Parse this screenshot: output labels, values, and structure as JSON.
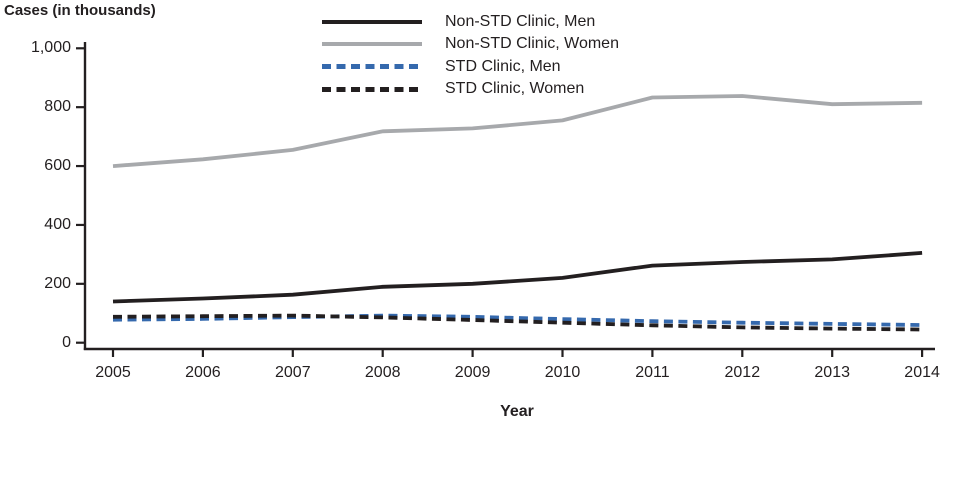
{
  "title": "Cases (in thousands)",
  "xlabel": "Year",
  "accent_colors": {
    "line_black": "#231f20",
    "line_gray": "#a7a9ac",
    "line_blue": "#3569ad",
    "axis": "#231f20"
  },
  "legend": {
    "items": [
      {
        "label": "Non-STD Clinic, Men",
        "color": "#231f20",
        "dash": false
      },
      {
        "label": "Non-STD Clinic, Women",
        "color": "#a7a9ac",
        "dash": false
      },
      {
        "label": "STD Clinic, Men",
        "color": "#3569ad",
        "dash": true
      },
      {
        "label": "STD Clinic, Women",
        "color": "#231f20",
        "dash": true
      }
    ]
  },
  "chart_data": {
    "type": "line",
    "title": "Cases (in thousands)",
    "xlabel": "Year",
    "ylabel": "Cases (in thousands)",
    "x": [
      2005,
      2006,
      2007,
      2008,
      2009,
      2010,
      2011,
      2012,
      2013,
      2014
    ],
    "series": [
      {
        "name": "Non-STD Clinic, Women",
        "color": "#a7a9ac",
        "dashed": false,
        "values": [
          600,
          623,
          655,
          718,
          728,
          755,
          833,
          838,
          810,
          815
        ]
      },
      {
        "name": "Non-STD Clinic, Men",
        "color": "#231f20",
        "dashed": false,
        "values": [
          140,
          150,
          163,
          190,
          200,
          220,
          262,
          274,
          283,
          305
        ]
      },
      {
        "name": "STD Clinic, Men",
        "color": "#3569ad",
        "dashed": true,
        "values": [
          78,
          81,
          87,
          92,
          88,
          80,
          73,
          68,
          64,
          60
        ]
      },
      {
        "name": "STD Clinic, Women",
        "color": "#231f20",
        "dashed": true,
        "values": [
          88,
          90,
          92,
          86,
          77,
          68,
          59,
          52,
          48,
          45
        ]
      }
    ],
    "ylim": [
      0,
      1000
    ],
    "yticks": [
      0,
      200,
      400,
      600,
      800,
      1000
    ],
    "ytick_labels": [
      "0",
      "200",
      "400",
      "600",
      "800",
      "1,000"
    ],
    "grid": false,
    "legend_position": "top-center"
  }
}
